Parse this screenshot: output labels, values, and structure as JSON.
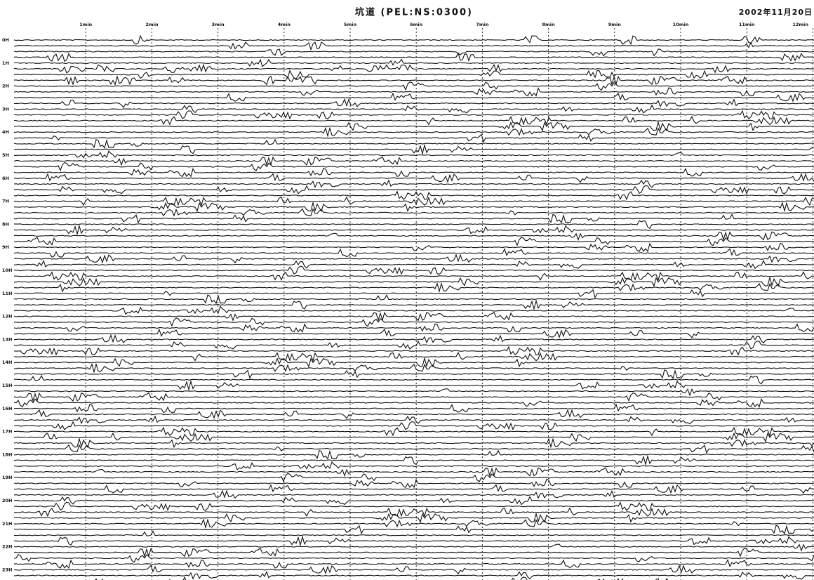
{
  "header": {
    "title": "坑道 (PEL:NS:0300)",
    "date": "2002年11月20日"
  },
  "time_labels": [
    "1min",
    "2min",
    "3min",
    "4min",
    "5min",
    "6min",
    "7min",
    "8min",
    "9min",
    "10min",
    "11min",
    "12min"
  ],
  "hour_labels": [
    "0H",
    "1H",
    "2H",
    "3H",
    "4H",
    "5H",
    "6H",
    "7H",
    "8H",
    "9H",
    "10H",
    "11H",
    "12H",
    "13H",
    "14H",
    "15H",
    "16H",
    "17H",
    "18H",
    "19H",
    "20H",
    "21H",
    "22H",
    "23H"
  ]
}
